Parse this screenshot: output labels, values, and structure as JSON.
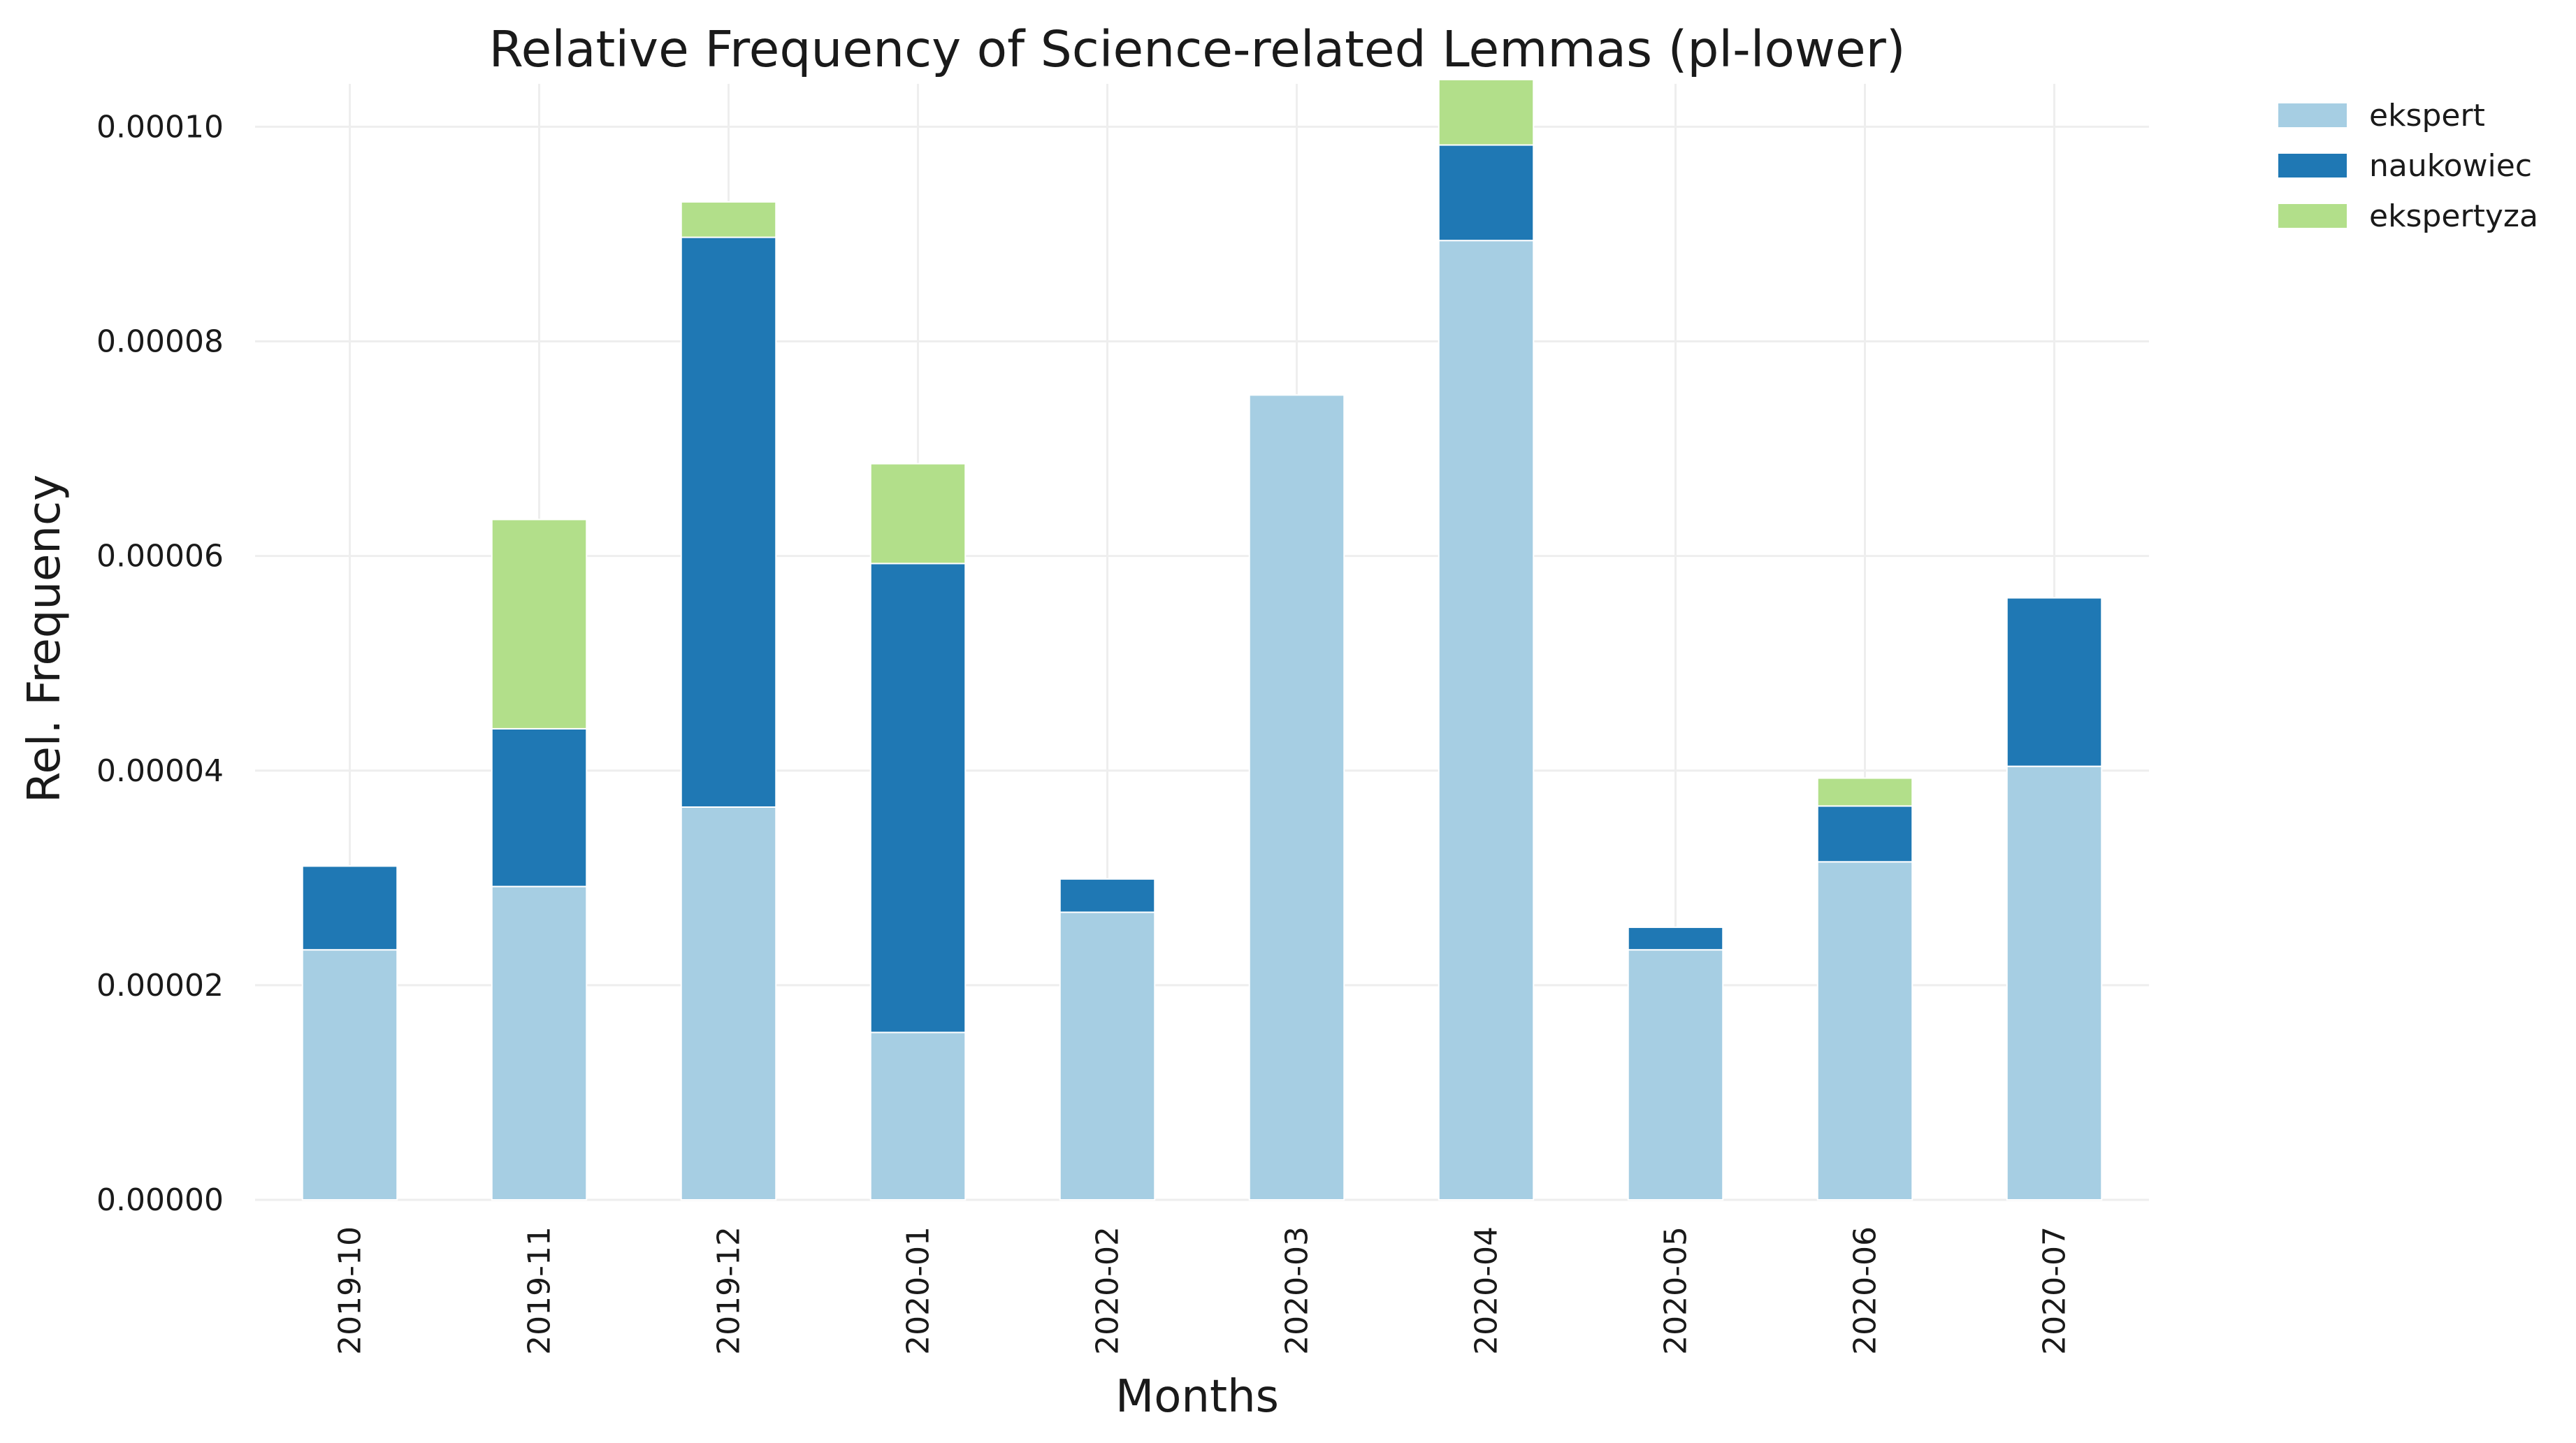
{
  "chart_data": {
    "type": "bar",
    "stacked": true,
    "title": "Relative Frequency of Science-related Lemmas (pl-lower)",
    "xlabel": "Months",
    "ylabel": "Rel. Frequency",
    "ylim": [
      0,
      0.000104
    ],
    "yticks": [
      "0.00000",
      "0.00002",
      "0.00004",
      "0.00006",
      "0.00008",
      "0.00010"
    ],
    "ytick_values": [
      0,
      2e-05,
      4e-05,
      6e-05,
      8e-05,
      0.0001
    ],
    "categories": [
      "2019-10",
      "2019-11",
      "2019-12",
      "2020-01",
      "2020-02",
      "2020-03",
      "2020-04",
      "2020-05",
      "2020-06",
      "2020-07"
    ],
    "series": [
      {
        "name": "ekspert",
        "color": "#a6cee3",
        "values": [
          2.33e-05,
          2.92e-05,
          3.66e-05,
          1.56e-05,
          2.68e-05,
          7.5e-05,
          8.94e-05,
          2.33e-05,
          3.15e-05,
          4.04e-05
        ]
      },
      {
        "name": "naukowiec",
        "color": "#1f78b4",
        "values": [
          7.8e-06,
          1.47e-05,
          5.31e-05,
          4.37e-05,
          3.1e-06,
          0.0,
          8.9e-06,
          2.1e-06,
          5.2e-06,
          1.57e-05
        ]
      },
      {
        "name": "ekspertyza",
        "color": "#b2df8a",
        "values": [
          0.0,
          1.95e-05,
          3.3e-06,
          9.3e-06,
          0.0,
          0.0,
          6.1e-06,
          0.0,
          2.6e-06,
          0.0
        ]
      }
    ],
    "grid": true,
    "legend_position": "top-right, outside plot"
  }
}
